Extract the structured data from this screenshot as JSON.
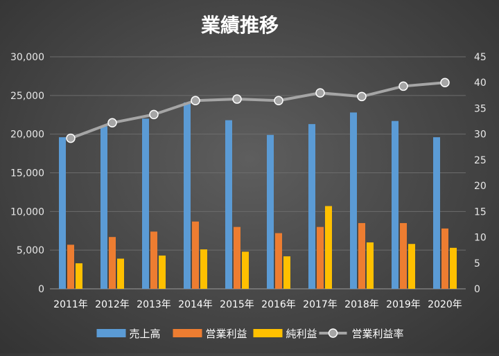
{
  "chart_data": {
    "type": "bar",
    "title": "業績推移",
    "categories": [
      "2011年",
      "2012年",
      "2013年",
      "2014年",
      "2015年",
      "2016年",
      "2017年",
      "2018年",
      "2019年",
      "2020年"
    ],
    "series": [
      {
        "name": "売上高",
        "type": "bar",
        "axis": "left",
        "color": "#5b9bd5",
        "values": [
          19600,
          21000,
          22000,
          24100,
          21800,
          19900,
          21300,
          22800,
          21700,
          19600
        ]
      },
      {
        "name": "営業利益",
        "type": "bar",
        "axis": "left",
        "color": "#ed7d31",
        "values": [
          5700,
          6700,
          7400,
          8700,
          8000,
          7200,
          8000,
          8500,
          8500,
          7800
        ]
      },
      {
        "name": "純利益",
        "type": "bar",
        "axis": "left",
        "color": "#ffc000",
        "values": [
          3300,
          3900,
          4300,
          5100,
          4800,
          4200,
          10700,
          6000,
          5800,
          5300
        ]
      },
      {
        "name": "営業利益率",
        "type": "line",
        "axis": "right",
        "color": "#a5a5a5",
        "values": [
          29.2,
          32.2,
          33.8,
          36.5,
          36.8,
          36.5,
          38.0,
          37.3,
          39.3,
          40.0
        ]
      }
    ],
    "y_left": {
      "min": 0,
      "max": 30000,
      "step": 5000,
      "tick_labels": [
        "0",
        "5,000",
        "10,000",
        "15,000",
        "20,000",
        "25,000",
        "30,000"
      ]
    },
    "y_right": {
      "min": 0,
      "max": 45,
      "step": 5,
      "tick_labels": [
        "0",
        "5",
        "10",
        "15",
        "20",
        "25",
        "30",
        "35",
        "40",
        "45"
      ]
    },
    "grid": true,
    "legend_position": "bottom"
  }
}
